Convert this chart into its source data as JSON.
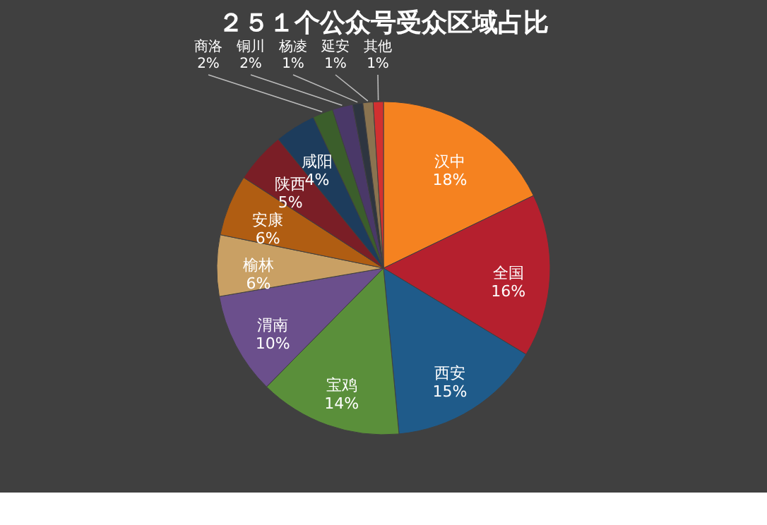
{
  "chart_data": {
    "type": "pie",
    "title": "２５１个公众号受众区域占比",
    "categories": [
      "汉中",
      "全国",
      "西安",
      "宝鸡",
      "渭南",
      "榆林",
      "安康",
      "陕西",
      "咸阳",
      "商洛",
      "铜川",
      "杨凌",
      "延安",
      "其他"
    ],
    "values": [
      18,
      16,
      15,
      14,
      10,
      6,
      6,
      5,
      4,
      2,
      2,
      1,
      1,
      1
    ],
    "value_labels": [
      "18%",
      "16%",
      "15%",
      "14%",
      "10%",
      "6%",
      "6%",
      "5%",
      "4%",
      "2%",
      "2%",
      "1%",
      "1%",
      "1%"
    ],
    "colors": [
      "#f58220",
      "#b5202e",
      "#1f5b8a",
      "#5a8f3a",
      "#6b4f8c",
      "#c9a064",
      "#b05d12",
      "#7a1e26",
      "#1d3c5c",
      "#3b5e2b",
      "#4a3868",
      "#2e3540",
      "#8a7350",
      "#d23030"
    ],
    "legend": false
  }
}
